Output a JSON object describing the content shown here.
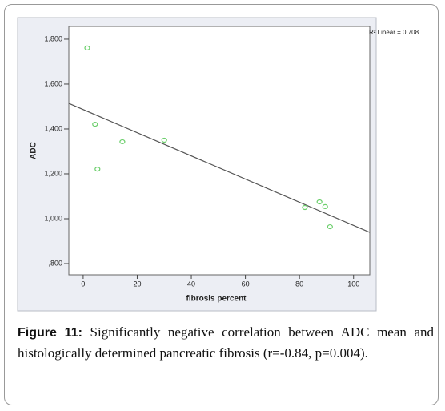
{
  "chart_data": {
    "type": "scatter",
    "xlabel": "fibrosis percent",
    "ylabel": "ADC",
    "annotation": "R² Linear = 0,708",
    "caption_label": "Figure 11:",
    "caption": "Significantly negative correlation between ADC mean and histologically determined pancreatic fibrosis (r=-0.84, p=0.004).",
    "x": [
      1.5,
      4.4,
      5.3,
      14.5,
      30,
      82,
      87.4,
      89.5,
      91.3
    ],
    "values": [
      1761,
      1421,
      1221,
      1343,
      1350,
      1050,
      1075,
      1054,
      964
    ],
    "color": "#6ccf6c",
    "fit": {
      "x": [
        -5.3,
        106
      ],
      "values": [
        1514,
        939
      ],
      "color": "#555555"
    },
    "xlim": [
      -5.3,
      106
    ],
    "xticks": [
      0,
      20,
      40,
      60,
      80,
      100
    ],
    "ylim": [
      750,
      1857
    ],
    "yticks": [
      {
        "value": 800,
        "label": ",800"
      },
      {
        "value": 1000,
        "label": "1,000"
      },
      {
        "value": 1200,
        "label": "1,200"
      },
      {
        "value": 1400,
        "label": "1,400"
      },
      {
        "value": 1600,
        "label": "1,600"
      },
      {
        "value": 1800,
        "label": "1,800"
      }
    ]
  }
}
